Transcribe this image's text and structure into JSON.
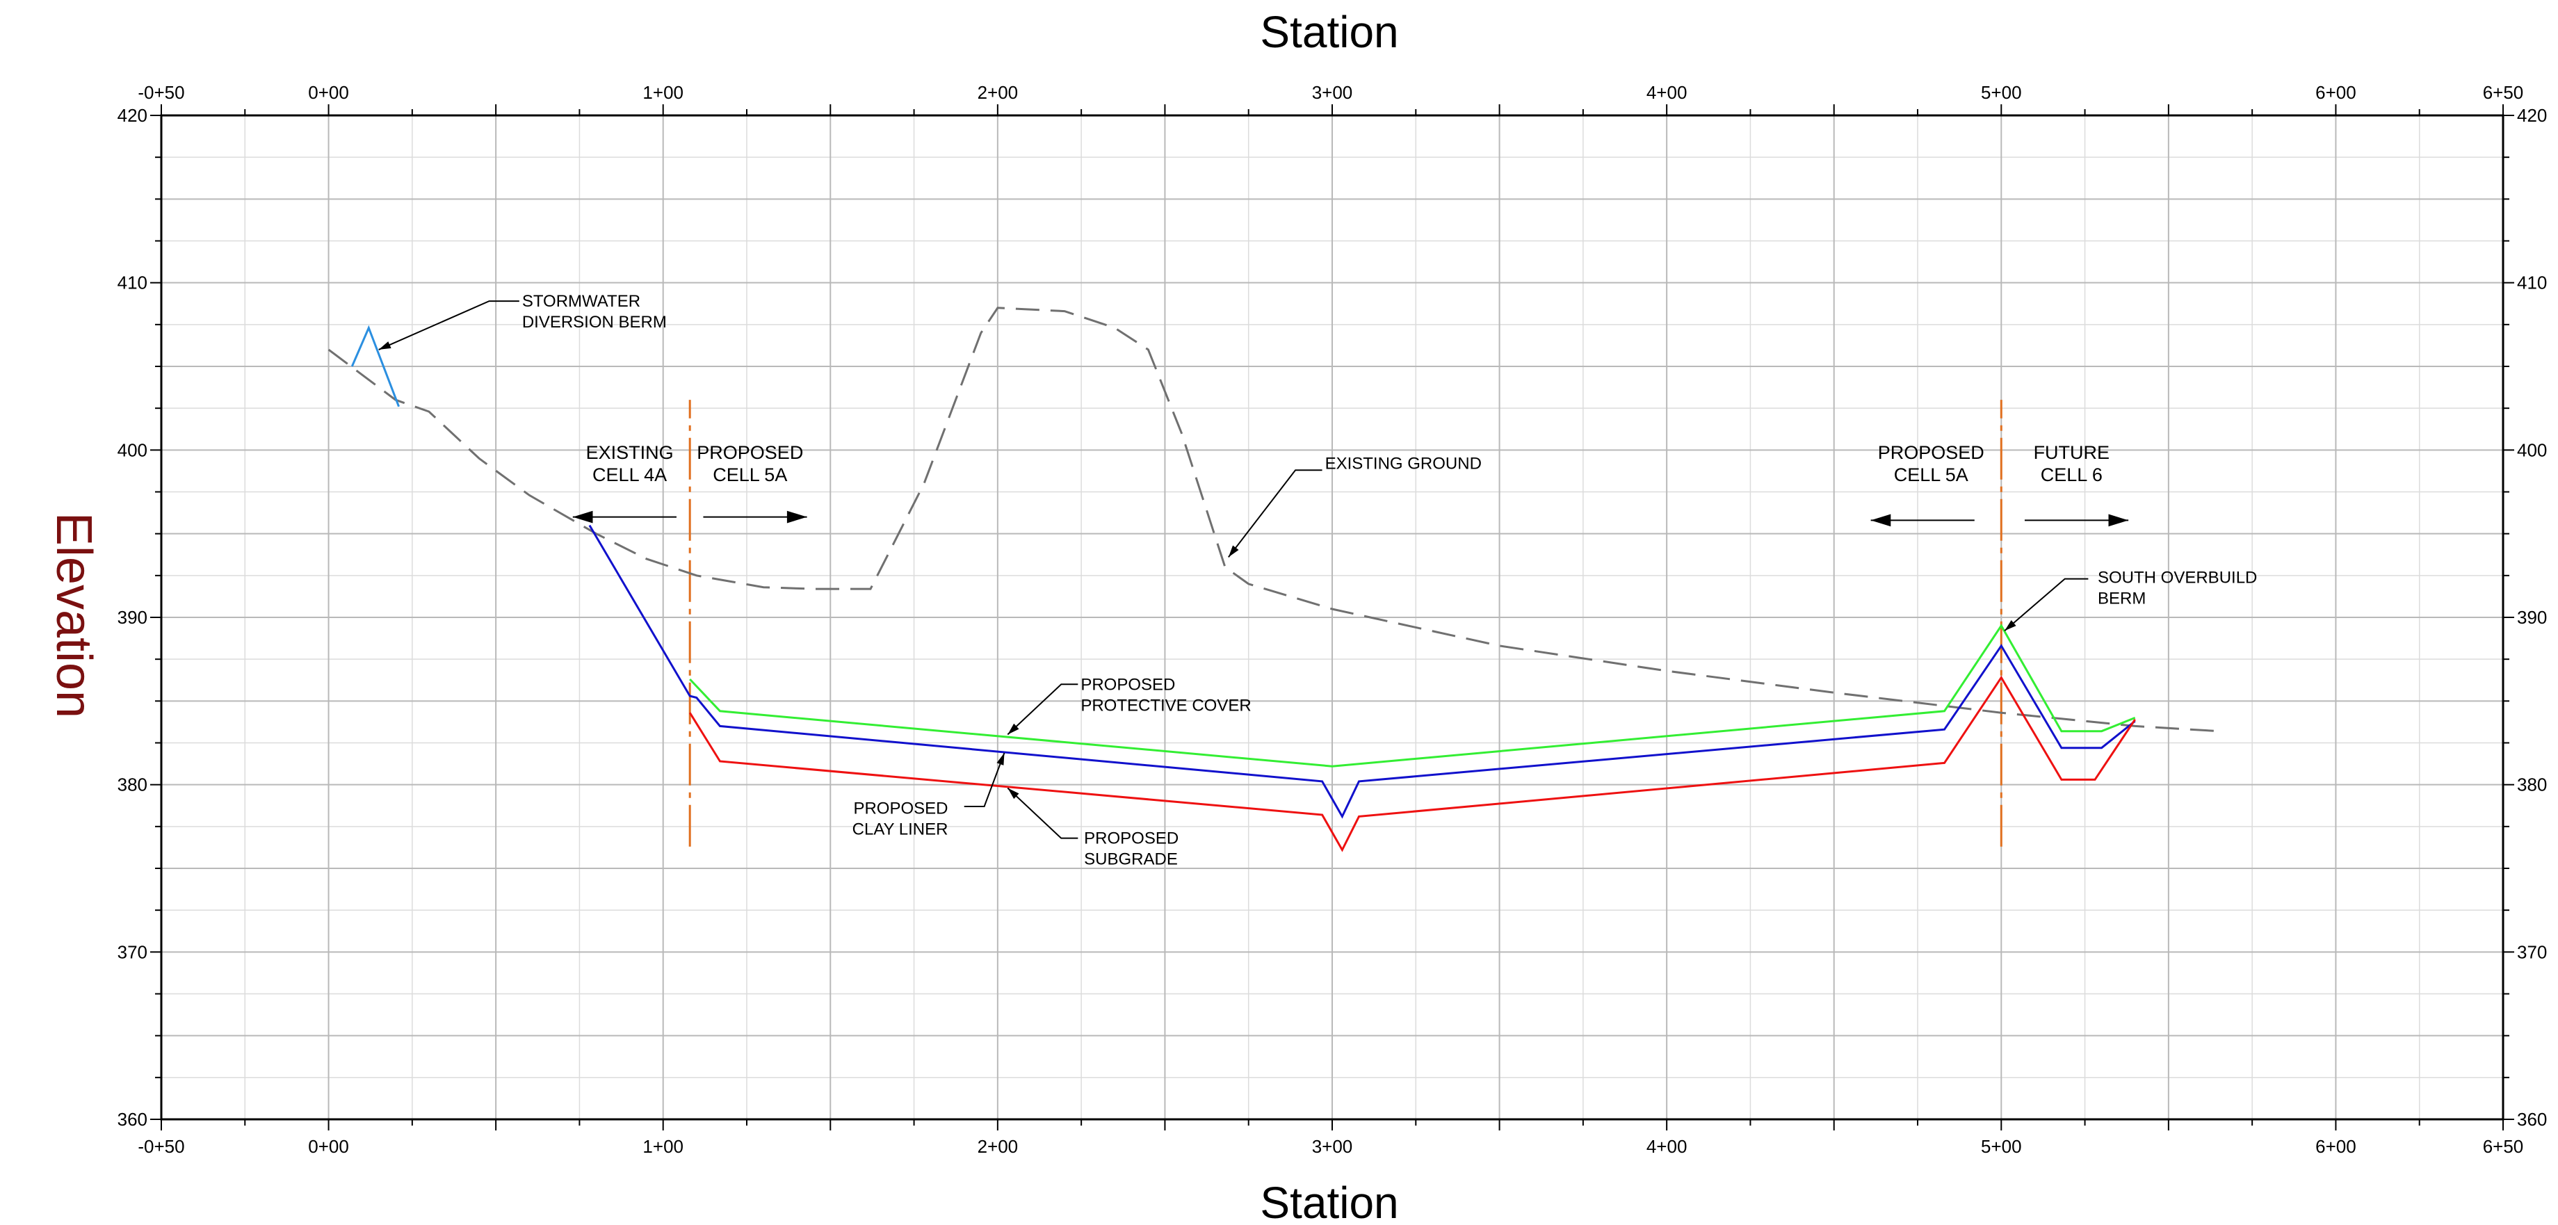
{
  "chart_data": {
    "type": "line",
    "title": "Station",
    "xlabel": "Station",
    "ylabel": "Elevation",
    "xlim": [
      -50,
      650
    ],
    "ylim": [
      360,
      420
    ],
    "x_ticks": [
      {
        "value": -50,
        "label": "-0+50"
      },
      {
        "value": 0,
        "label": "0+00"
      },
      {
        "value": 100,
        "label": "1+00"
      },
      {
        "value": 200,
        "label": "2+00"
      },
      {
        "value": 300,
        "label": "3+00"
      },
      {
        "value": 400,
        "label": "4+00"
      },
      {
        "value": 500,
        "label": "5+00"
      },
      {
        "value": 600,
        "label": "6+00"
      },
      {
        "value": 650,
        "label": "6+50"
      }
    ],
    "y_ticks": [
      {
        "value": 360,
        "label": "360"
      },
      {
        "value": 370,
        "label": "370"
      },
      {
        "value": 380,
        "label": "380"
      },
      {
        "value": 390,
        "label": "390"
      },
      {
        "value": 400,
        "label": "400"
      },
      {
        "value": 410,
        "label": "410"
      },
      {
        "value": 420,
        "label": "420"
      }
    ],
    "grid": true,
    "series": [
      {
        "name": "EXISTING GROUND",
        "color": "#707070",
        "dash": "dashed",
        "x": [
          0,
          20,
          30,
          45,
          60,
          80,
          95,
          110,
          130,
          145,
          162,
          178,
          195,
          200,
          220,
          235,
          245,
          255,
          268,
          275,
          300,
          350,
          400,
          450,
          500,
          540,
          565
        ],
        "y": [
          406,
          403,
          402.3,
          399.5,
          397.3,
          395,
          393.5,
          392.5,
          391.8,
          391.7,
          391.7,
          398,
          407,
          408.5,
          408.3,
          407.3,
          406,
          401,
          393,
          392,
          390.5,
          388.3,
          386.8,
          385.5,
          384.3,
          383.5,
          383.2
        ]
      },
      {
        "name": "PROPOSED PROTECTIVE COVER",
        "color": "#33ee33",
        "dash": "solid",
        "x": [
          108,
          117,
          300,
          483,
          500,
          518,
          530,
          540
        ],
        "y": [
          386.3,
          384.4,
          381.1,
          384.4,
          389.5,
          383.2,
          383.2,
          384
        ]
      },
      {
        "name": "PROPOSED CLAY LINER",
        "color": "#1111cc",
        "dash": "solid",
        "x": [
          78,
          108,
          110,
          117,
          297,
          303,
          308,
          483,
          500,
          518,
          530,
          540
        ],
        "y": [
          395.5,
          385.3,
          385.2,
          383.5,
          380.2,
          378.1,
          380.2,
          383.3,
          388.3,
          382.2,
          382.2,
          383.8
        ]
      },
      {
        "name": "PROPOSED SUBGRADE",
        "color": "#ee1111",
        "dash": "solid",
        "x": [
          108,
          117,
          297,
          303,
          308,
          483,
          500,
          518,
          528,
          540
        ],
        "y": [
          384.3,
          381.4,
          378.2,
          376.1,
          378.1,
          381.3,
          386.4,
          380.3,
          380.3,
          383.9
        ]
      },
      {
        "name": "STORMWATER DIVERSION BERM",
        "color": "#2b8fe0",
        "dash": "solid",
        "x": [
          7,
          12,
          21
        ],
        "y": [
          405,
          407.3,
          402.6
        ]
      }
    ],
    "vertical_lines": [
      {
        "x": 108,
        "y0": 376.3,
        "y1": 403,
        "color": "#e07020"
      },
      {
        "x": 500,
        "y0": 376.3,
        "y1": 403,
        "color": "#e07020"
      }
    ],
    "annotations": [
      {
        "lines": [
          "STORMWATER",
          "DIVERSION BERM"
        ],
        "x": 57,
        "y": 408.4,
        "arrow_to": [
          15,
          406
        ],
        "leader": [
          [
            57,
            408.9
          ],
          [
            48,
            408.9
          ]
        ],
        "anchor": "start"
      },
      {
        "lines": [
          "EXISTING GROUND"
        ],
        "x": 297,
        "y": 398.7,
        "arrow_to": [
          269,
          393.6
        ],
        "leader": [
          [
            297,
            398.8
          ],
          [
            289,
            398.8
          ]
        ],
        "anchor": "start"
      },
      {
        "lines": [
          "PROPOSED",
          "PROTECTIVE COVER"
        ],
        "x": 224,
        "y": 385.5,
        "arrow_to": [
          203,
          383
        ],
        "leader": [
          [
            224,
            386
          ],
          [
            219,
            386
          ]
        ],
        "anchor": "start"
      },
      {
        "lines": [
          "PROPOSED",
          "CLAY LINER"
        ],
        "x": 186,
        "y": 378.1,
        "arrow_to": [
          202,
          381.9
        ],
        "leader": [
          [
            190,
            378.7
          ],
          [
            196,
            378.7
          ]
        ],
        "anchor": "end"
      },
      {
        "lines": [
          "PROPOSED",
          "SUBGRADE"
        ],
        "x": 225,
        "y": 376.3,
        "arrow_to": [
          203,
          379.8
        ],
        "leader": [
          [
            224,
            376.8
          ],
          [
            219,
            376.8
          ]
        ],
        "anchor": "start"
      },
      {
        "lines": [
          "SOUTH OVERBUILD",
          "BERM"
        ],
        "x": 528,
        "y": 391.9,
        "arrow_to": [
          501,
          389.2
        ],
        "leader": [
          [
            526,
            392.3
          ],
          [
            519,
            392.3
          ]
        ],
        "anchor": "start"
      }
    ],
    "zone_labels": [
      {
        "lines": [
          "EXISTING",
          "CELL 4A"
        ],
        "x": 90,
        "y": 399.8,
        "arrow_from": 104,
        "arrow_to": 73,
        "arrow_y": 396
      },
      {
        "lines": [
          "PROPOSED",
          "CELL 5A"
        ],
        "x": 126,
        "y": 399.8,
        "arrow_from": 112,
        "arrow_to": 143,
        "arrow_y": 396
      },
      {
        "lines": [
          "PROPOSED",
          "CELL 5A"
        ],
        "x": 479,
        "y": 399.8,
        "arrow_from": 492,
        "arrow_to": 461,
        "arrow_y": 395.8
      },
      {
        "lines": [
          "FUTURE",
          "CELL 6"
        ],
        "x": 521,
        "y": 399.8,
        "arrow_from": 507,
        "arrow_to": 538,
        "arrow_y": 395.8
      }
    ]
  }
}
